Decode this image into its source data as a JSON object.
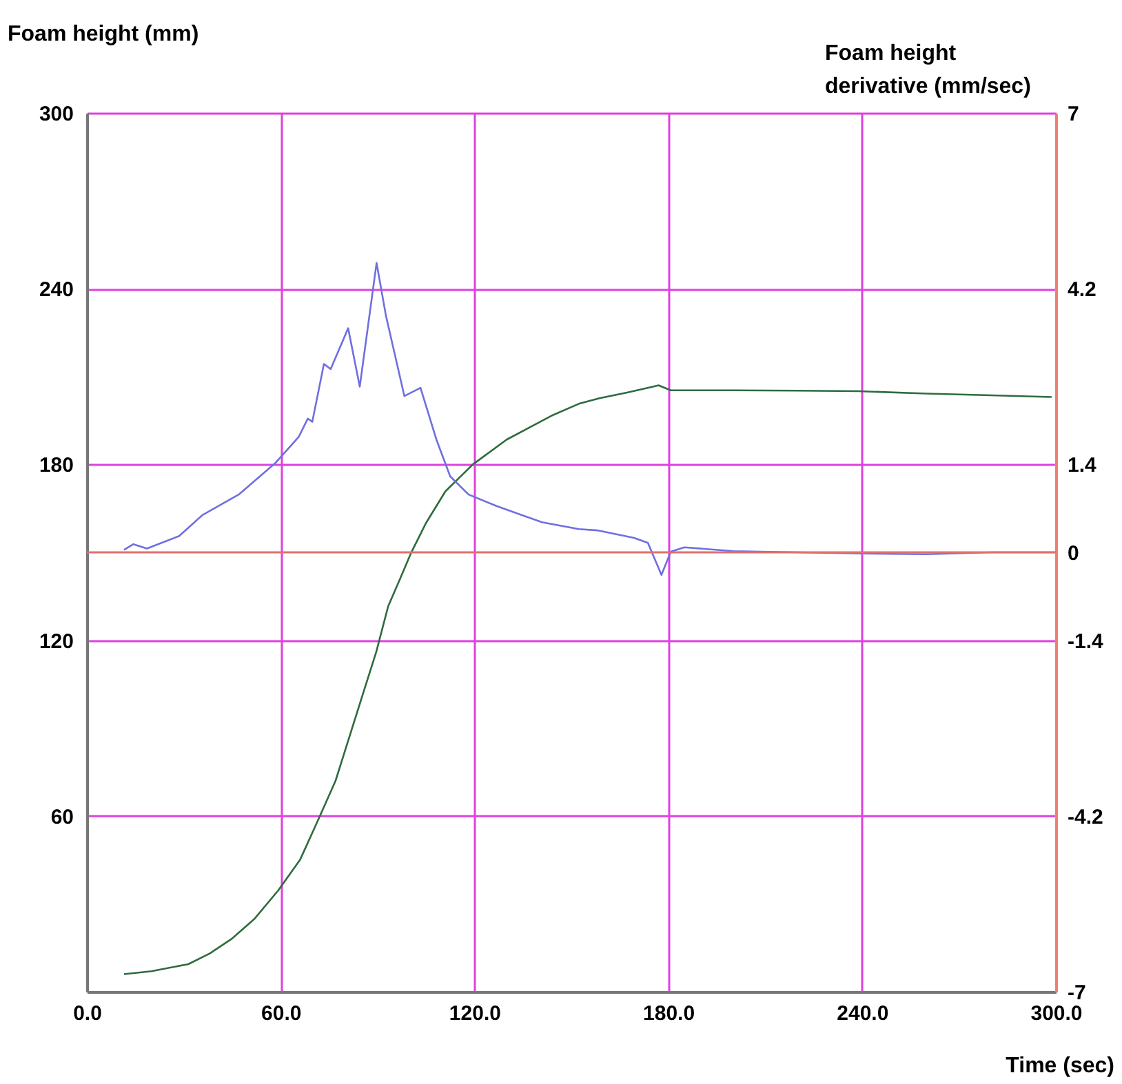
{
  "chart_data": {
    "type": "line",
    "xlabel": "Time (sec)",
    "ylabel": "Foam height (mm)",
    "y2label": "Foam height derivative (mm/sec)",
    "xlim": [
      0,
      300
    ],
    "xticks": [
      {
        "value": 0,
        "label": "0.0"
      },
      {
        "value": 60,
        "label": "60.0"
      },
      {
        "value": 120,
        "label": "120.0"
      },
      {
        "value": 180,
        "label": "180.0"
      },
      {
        "value": 240,
        "label": "240.0"
      },
      {
        "value": 300,
        "label": "300.0"
      }
    ],
    "ylim": [
      0,
      300
    ],
    "yticks": [
      60,
      120,
      180,
      240,
      300
    ],
    "y2lim": [
      -7,
      7
    ],
    "y2ticks": [
      -7,
      -4.2,
      -1.4,
      0,
      1.4,
      4.2,
      7
    ],
    "grid": true,
    "series": [
      {
        "color": "#2e6b3e",
        "x": [
          11.5,
          20,
          31.4,
          38,
          44.8,
          52,
          59.2,
          66,
          72,
          77,
          81,
          85,
          89.6,
          93.3,
          97,
          100.3,
          105,
          111,
          119.5,
          130,
          143.8,
          152.3,
          158.7,
          167,
          175,
          177,
          180.8,
          200,
          220,
          239,
          260,
          280,
          298.7
        ],
        "values": [
          6,
          7,
          9.4,
          13,
          18,
          25,
          34.5,
          45,
          59.6,
          72,
          86,
          100,
          116,
          131.6,
          141,
          149.6,
          160,
          170.8,
          180,
          188.5,
          196.6,
          200.7,
          202.6,
          204.5,
          206.5,
          207,
          205.3,
          205.3,
          205.2,
          205,
          204.2,
          203.6,
          203
        ]
      },
      {
        "color": "#6f6fe0",
        "axis": "y2",
        "x": [
          11.5,
          14.4,
          18.6,
          28.6,
          35.7,
          47,
          58.5,
          65.6,
          68.4,
          69.8,
          73.4,
          75.5,
          80.9,
          84.5,
          89.7,
          92.6,
          98.3,
          103.3,
          108.2,
          112.5,
          118.2,
          126.7,
          140.9,
          152.3,
          158,
          169.4,
          173.7,
          177.9,
          180.8,
          185,
          200,
          220,
          240,
          260,
          280,
          300
        ],
        "values": [
          0.04,
          0.13,
          0.06,
          0.26,
          0.59,
          0.92,
          1.43,
          1.84,
          2.13,
          2.08,
          3.0,
          2.92,
          3.57,
          2.64,
          4.61,
          3.77,
          2.49,
          2.62,
          1.8,
          1.21,
          0.92,
          0.74,
          0.48,
          0.37,
          0.35,
          0.23,
          0.15,
          -0.36,
          0.01,
          0.08,
          0.02,
          0.0,
          -0.02,
          -0.03,
          0.0,
          0.0
        ]
      }
    ],
    "ref_lines": [
      {
        "axis": "y2",
        "value": 0,
        "color": "#e07070"
      }
    ]
  }
}
